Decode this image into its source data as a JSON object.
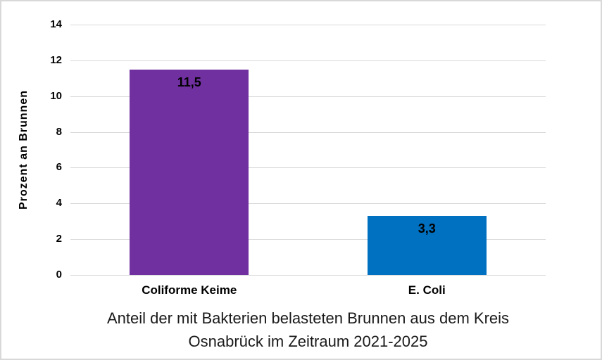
{
  "chart_data": {
    "type": "bar",
    "title": "Anteil der mit Bakterien belasteten Brunnen aus dem Kreis Osnabrück im Zeitraum 2021-2025",
    "title_lines": [
      "Anteil der mit Bakterien belasteten Brunnen aus dem Kreis",
      "Osnabrück im Zeitraum 2021-2025"
    ],
    "xlabel": "",
    "ylabel": "Prozent an Brunnen",
    "categories": [
      "Coliforme Keime",
      "E. Coli"
    ],
    "values": [
      11.5,
      3.3
    ],
    "value_labels": [
      "11,5",
      "3,3"
    ],
    "bar_colors": [
      "#7030A0",
      "#0070C0"
    ],
    "ylim": [
      0,
      14
    ],
    "yticks": [
      0,
      2,
      4,
      6,
      8,
      10,
      12,
      14
    ],
    "grid": "horizontal",
    "gridline_color": "#D9D9D9",
    "legend": "none"
  }
}
